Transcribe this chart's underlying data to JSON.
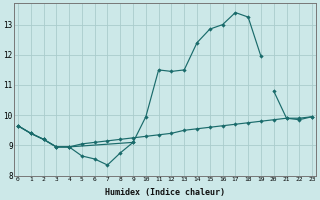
{
  "xlabel": "Humidex (Indice chaleur)",
  "bg_color": "#cce8e8",
  "grid_color": "#aacccc",
  "line_color": "#1a6b6b",
  "x_all": [
    0,
    1,
    2,
    3,
    4,
    5,
    6,
    7,
    8,
    9,
    10,
    11,
    12,
    13,
    14,
    15,
    16,
    17,
    18,
    19,
    20,
    21,
    22,
    23
  ],
  "line1_y": [
    9.65,
    9.4,
    9.2,
    8.95,
    8.95,
    8.65,
    8.55,
    8.35,
    8.75,
    9.1,
    null,
    null,
    null,
    null,
    null,
    null,
    null,
    null,
    null,
    null,
    null,
    null,
    null,
    null
  ],
  "line2_y": [
    9.65,
    9.4,
    9.2,
    8.95,
    8.95,
    null,
    null,
    null,
    null,
    9.1,
    9.95,
    11.5,
    11.45,
    11.5,
    12.4,
    12.85,
    13.0,
    13.4,
    13.25,
    11.95,
    null,
    null,
    null,
    null
  ],
  "line3_y": [
    9.65,
    9.4,
    9.2,
    8.95,
    8.95,
    9.05,
    9.1,
    9.15,
    9.2,
    9.25,
    9.3,
    9.35,
    9.4,
    9.5,
    9.55,
    9.6,
    9.65,
    9.7,
    9.75,
    9.8,
    9.85,
    9.9,
    9.9,
    9.95
  ],
  "line4_y": [
    null,
    null,
    null,
    null,
    null,
    null,
    null,
    null,
    null,
    null,
    null,
    null,
    null,
    null,
    null,
    null,
    null,
    null,
    null,
    null,
    10.8,
    9.9,
    9.85,
    9.95
  ],
  "ylim": [
    8.0,
    13.7
  ],
  "xlim": [
    -0.3,
    23.3
  ],
  "yticks": [
    8,
    9,
    10,
    11,
    12,
    13
  ],
  "xticks": [
    0,
    1,
    2,
    3,
    4,
    5,
    6,
    7,
    8,
    9,
    10,
    11,
    12,
    13,
    14,
    15,
    16,
    17,
    18,
    19,
    20,
    21,
    22,
    23
  ]
}
